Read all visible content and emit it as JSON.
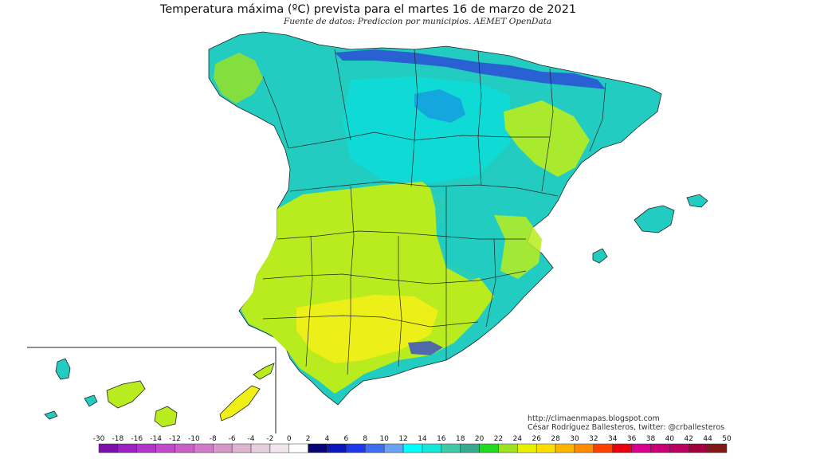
{
  "title": "Temperatura máxima (ºC) prevista para el martes 16 de marzo de 2021",
  "subtitle": "Fuente de datos: Prediccion por municipios. AEMET OpenData",
  "credits": {
    "blog": "http://climaenmapas.blogspot.com",
    "author": "César Rodríguez Ballesteros, twitter: @crballesteros"
  },
  "legend": {
    "labels": [
      "-30",
      "-18",
      "-16",
      "-14",
      "-12",
      "-10",
      "-8",
      "-6",
      "-4",
      "-2",
      "0",
      "2",
      "4",
      "6",
      "8",
      "10",
      "12",
      "14",
      "16",
      "18",
      "20",
      "22",
      "24",
      "26",
      "28",
      "30",
      "32",
      "34",
      "36",
      "38",
      "40",
      "42",
      "44",
      "50"
    ],
    "colors": [
      "#7a10a8",
      "#9a22c0",
      "#b035c8",
      "#c04ac8",
      "#c860c8",
      "#d07ac8",
      "#d698c8",
      "#dcb4d0",
      "#e6cedc",
      "#f2e6ee",
      "#ffffff",
      "#050578",
      "#0a16b8",
      "#1e3ae8",
      "#3e6ef0",
      "#6aa2f2",
      "#00ffff",
      "#14e8d8",
      "#40c8a8",
      "#38a890",
      "#22d822",
      "#9ee022",
      "#e6f000",
      "#ffdc00",
      "#ffb400",
      "#ff8c00",
      "#ff4000",
      "#e80010",
      "#d80090",
      "#c80078",
      "#b8005e",
      "#a00040",
      "#801818"
    ]
  },
  "map_colors": {
    "teal": "#22ccc0",
    "cyan": "#00e6e6",
    "blue": "#2e3ed8",
    "yellow_green": "#b8ec1e",
    "yellow": "#eef018",
    "green": "#6cdc3c"
  }
}
